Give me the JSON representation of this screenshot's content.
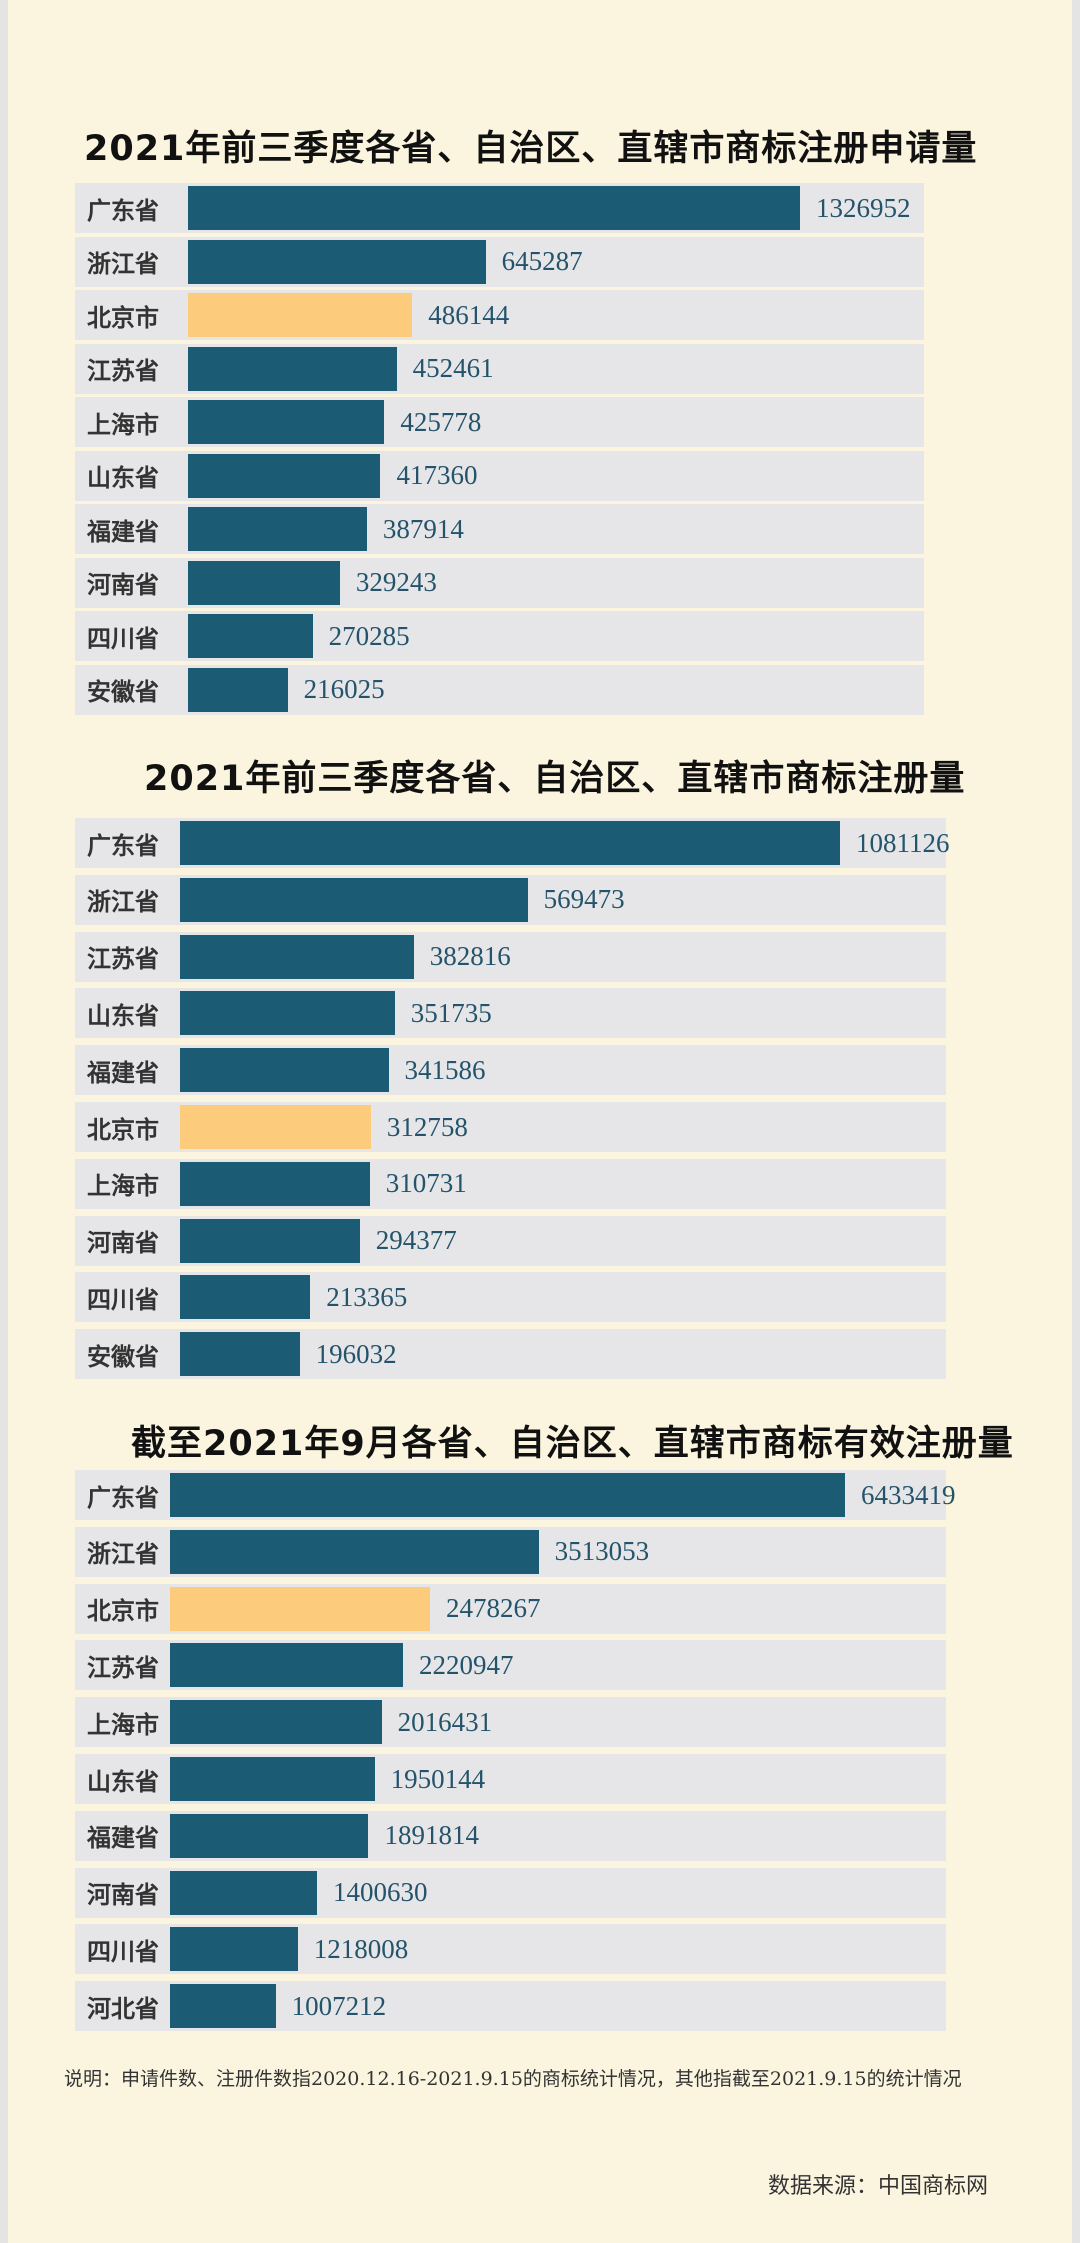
{
  "colors": {
    "bar": "#1b5b74",
    "highlight": "#fccb7c",
    "row_bg": "#e6e6e8"
  },
  "chart_data": [
    {
      "type": "bar",
      "orientation": "horizontal",
      "title": "2021年前三季度各省、自治区、直辖市商标注册申请量",
      "categories": [
        "广东省",
        "浙江省",
        "北京市",
        "江苏省",
        "上海市",
        "山东省",
        "福建省",
        "河南省",
        "四川省",
        "安徽省"
      ],
      "values": [
        1326952,
        645287,
        486144,
        452461,
        425778,
        417360,
        387914,
        329243,
        270285,
        216025
      ],
      "highlight": "北京市"
    },
    {
      "type": "bar",
      "orientation": "horizontal",
      "title": "2021年前三季度各省、自治区、直辖市商标注册量",
      "categories": [
        "广东省",
        "浙江省",
        "江苏省",
        "山东省",
        "福建省",
        "北京市",
        "上海市",
        "河南省",
        "四川省",
        "安徽省"
      ],
      "values": [
        1081126,
        569473,
        382816,
        351735,
        341586,
        312758,
        310731,
        294377,
        213365,
        196032
      ],
      "highlight": "北京市"
    },
    {
      "type": "bar",
      "orientation": "horizontal",
      "title": "截至2021年9月各省、自治区、直辖市商标有效注册量",
      "categories": [
        "广东省",
        "浙江省",
        "北京市",
        "江苏省",
        "上海市",
        "山东省",
        "福建省",
        "河南省",
        "四川省",
        "河北省"
      ],
      "values": [
        6433419,
        3513053,
        2478267,
        2220947,
        2016431,
        1950144,
        1891814,
        1400630,
        1218008,
        1007212
      ],
      "highlight": "北京市"
    }
  ],
  "footer": {
    "note": "说明：申请件数、注册件数指2020.12.16-2021.9.15的商标统计情况，其他指截至2021.9.15的统计情况",
    "source": "数据来源：中国商标网"
  }
}
